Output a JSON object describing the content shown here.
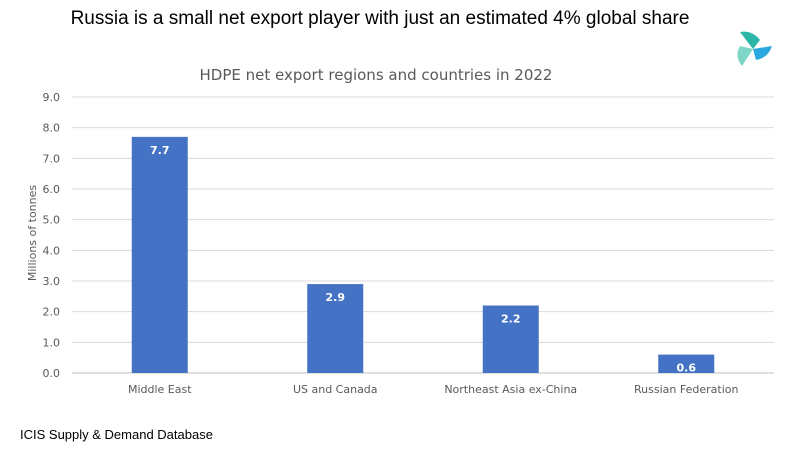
{
  "headline": "Russia is a small net export player with just an estimated 4% global share",
  "source": "ICIS Supply & Demand Database",
  "logo": {
    "icon": "icis-logo-icon",
    "colors": [
      "#2bb6a8",
      "#29a8e0",
      "#7ed6c6"
    ]
  },
  "chart_data": {
    "type": "bar",
    "title": "HDPE net export regions and countries in 2022",
    "xlabel": "",
    "ylabel": "Millions of tonnes",
    "categories": [
      "Middle East",
      "US and Canada",
      "Northeast Asia ex-China",
      "Russian Federation"
    ],
    "values": [
      7.7,
      2.9,
      2.2,
      0.6
    ],
    "data_labels": [
      "7.7",
      "2.9",
      "2.2",
      "0.6"
    ],
    "ylim": [
      0,
      9
    ],
    "yticks": [
      "0.0",
      "1.0",
      "2.0",
      "3.0",
      "4.0",
      "5.0",
      "6.0",
      "7.0",
      "8.0",
      "9.0"
    ],
    "grid": true,
    "bar_color": "#4472c4",
    "legend": "none"
  }
}
